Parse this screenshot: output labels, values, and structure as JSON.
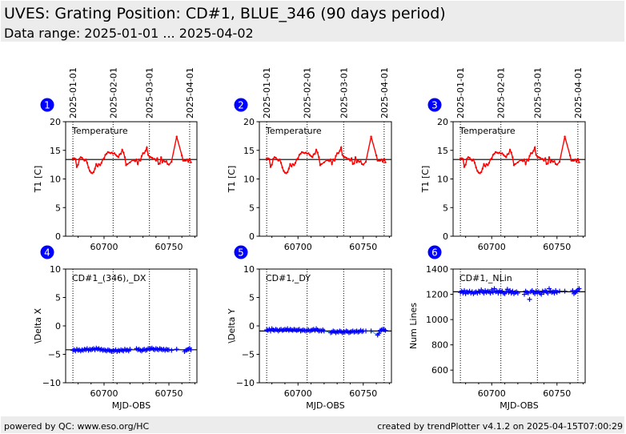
{
  "header": {
    "title": "UVES: Grating Position: CD#1, BLUE_346 (90 days period)",
    "subtitle": "Data range: 2025-01-01 ... 2025-04-02"
  },
  "footer": {
    "left": "powered by QC: www.eso.org/HC",
    "right": "created by trendPlotter v4.1.2 on 2025-04-15T07:00:29"
  },
  "colors": {
    "badge": "#0000ff",
    "temperature": "#ff0000",
    "points": "#0000ff",
    "fit_line": "#3399cc",
    "reference": "#000000",
    "header_bg": "#ececec"
  },
  "chart_data": [
    {
      "id": 1,
      "type": "line",
      "badge": "1",
      "label": "Temperature",
      "ylabel": "T1 [C]",
      "xlabel": "",
      "xlim": [
        60670.4,
        60771.6
      ],
      "ylim": [
        0,
        20
      ],
      "yticks": [
        0,
        5,
        10,
        15,
        20
      ],
      "xticks": [
        60700,
        60750
      ],
      "date_markers": [
        {
          "mjd": 60676,
          "label": "2025-01-01"
        },
        {
          "mjd": 60707,
          "label": "2025-02-01"
        },
        {
          "mjd": 60735,
          "label": "2025-03-01"
        },
        {
          "mjd": 60766,
          "label": "2025-04-01"
        }
      ],
      "reference": 13.4,
      "series": "temperature"
    },
    {
      "id": 2,
      "type": "line",
      "badge": "2",
      "label": "Temperature",
      "ylabel": "T1 [C]",
      "xlabel": "",
      "xlim": [
        60670.4,
        60771.6
      ],
      "ylim": [
        0,
        20
      ],
      "yticks": [
        0,
        5,
        10,
        15,
        20
      ],
      "xticks": [
        60700,
        60750
      ],
      "date_markers": [
        {
          "mjd": 60676,
          "label": "2025-01-01"
        },
        {
          "mjd": 60707,
          "label": "2025-02-01"
        },
        {
          "mjd": 60735,
          "label": "2025-03-01"
        },
        {
          "mjd": 60766,
          "label": "2025-04-01"
        }
      ],
      "reference": 13.4,
      "series": "temperature"
    },
    {
      "id": 3,
      "type": "line",
      "badge": "3",
      "label": "Temperature",
      "ylabel": "T1 [C]",
      "xlabel": "",
      "xlim": [
        60670.4,
        60771.6
      ],
      "ylim": [
        0,
        20
      ],
      "yticks": [
        0,
        5,
        10,
        15,
        20
      ],
      "xticks": [
        60700,
        60750
      ],
      "date_markers": [
        {
          "mjd": 60676,
          "label": "2025-01-01"
        },
        {
          "mjd": 60707,
          "label": "2025-02-01"
        },
        {
          "mjd": 60735,
          "label": "2025-03-01"
        },
        {
          "mjd": 60766,
          "label": "2025-04-01"
        }
      ],
      "reference": 13.4,
      "series": "temperature"
    },
    {
      "id": 4,
      "type": "scatter",
      "badge": "4",
      "label": "CD#1_(346),_DX",
      "ylabel": "\\Delta X",
      "xlabel": "MJD-OBS",
      "xlim": [
        60670.4,
        60771.6
      ],
      "ylim": [
        -10,
        10
      ],
      "yticks": [
        -10,
        -5,
        0,
        5,
        10
      ],
      "xticks": [
        60700,
        60750
      ],
      "date_markers": [
        {
          "mjd": 60676
        },
        {
          "mjd": 60707
        },
        {
          "mjd": 60735
        },
        {
          "mjd": 60766
        }
      ],
      "reference": -4.2,
      "series": "dx"
    },
    {
      "id": 5,
      "type": "scatter",
      "badge": "5",
      "label": "CD#1,_DY",
      "ylabel": "\\Delta Y",
      "xlabel": "MJD-OBS",
      "xlim": [
        60670.4,
        60771.6
      ],
      "ylim": [
        -10,
        10
      ],
      "yticks": [
        -10,
        -5,
        0,
        5,
        10
      ],
      "xticks": [
        60700,
        60750
      ],
      "date_markers": [
        {
          "mjd": 60676
        },
        {
          "mjd": 60707
        },
        {
          "mjd": 60735
        },
        {
          "mjd": 60766
        }
      ],
      "reference": -0.9,
      "series": "dy"
    },
    {
      "id": 6,
      "type": "scatter",
      "badge": "6",
      "label": "CD#1,_NLin",
      "ylabel": "Num Lines",
      "xlabel": "MJD-OBS",
      "xlim": [
        60670.4,
        60771.6
      ],
      "ylim": [
        500,
        1400
      ],
      "yticks": [
        600,
        800,
        1000,
        1200,
        1400
      ],
      "xticks": [
        60700,
        60750
      ],
      "date_markers": [
        {
          "mjd": 60676
        },
        {
          "mjd": 60707
        },
        {
          "mjd": 60735
        },
        {
          "mjd": 60766
        }
      ],
      "reference": 1220,
      "series": "nlin"
    }
  ],
  "series_data": {
    "temperature": {
      "x": [
        60676,
        60677,
        60678,
        60679,
        60680,
        60681,
        60682,
        60683,
        60684,
        60685,
        60686,
        60687,
        60688,
        60689,
        60690,
        60691,
        60692,
        60693,
        60694,
        60695,
        60696,
        60697,
        60698,
        60699,
        60700,
        60701,
        60702,
        60703,
        60704,
        60705,
        60706,
        60707,
        60708,
        60709,
        60710,
        60711,
        60712,
        60713,
        60714,
        60715,
        60716,
        60717,
        60718,
        60720,
        60722,
        60724,
        60725,
        60726,
        60727,
        60728,
        60729,
        60730,
        60731,
        60732,
        60733,
        60734,
        60735,
        60736,
        60737,
        60738,
        60739,
        60740,
        60741,
        60742,
        60743,
        60744,
        60745,
        60746,
        60747,
        60748,
        60749,
        60750,
        60752,
        60756,
        60760,
        60761,
        60762,
        60763,
        60764,
        60765,
        60766,
        60767
      ],
      "y": [
        13.6,
        13.6,
        13.5,
        12.1,
        12.5,
        13.5,
        13.8,
        13.7,
        13.4,
        13.2,
        13.4,
        12.8,
        12.0,
        11.4,
        11.1,
        11.0,
        11.2,
        11.8,
        12.6,
        12.2,
        12.6,
        12.4,
        12.8,
        13.4,
        13.6,
        14.2,
        14.4,
        14.7,
        14.6,
        14.5,
        14.6,
        14.4,
        14.5,
        14.2,
        14.0,
        13.8,
        14.3,
        14.4,
        15.1,
        14.6,
        13.8,
        12.4,
        12.6,
        12.9,
        13.3,
        13.1,
        13.4,
        12.6,
        13.4,
        13.2,
        14.0,
        14.5,
        14.5,
        14.9,
        15.5,
        14.2,
        13.9,
        13.8,
        13.7,
        13.5,
        13.5,
        13.2,
        13.6,
        12.6,
        12.7,
        13.8,
        12.9,
        13.2,
        13.0,
        13.1,
        12.6,
        12.5,
        13.0,
        17.4,
        14.1,
        13.2,
        13.2,
        13.2,
        13.4,
        13.0,
        13.5,
        12.9
      ]
    },
    "dx": {
      "x": [
        60676,
        60677,
        60678,
        60679,
        60680,
        60681,
        60682,
        60683,
        60684,
        60685,
        60686,
        60687,
        60688,
        60689,
        60690,
        60691,
        60692,
        60693,
        60694,
        60695,
        60696,
        60697,
        60698,
        60699,
        60700,
        60701,
        60702,
        60703,
        60704,
        60705,
        60706,
        60707,
        60708,
        60709,
        60710,
        60711,
        60712,
        60713,
        60714,
        60715,
        60716,
        60717,
        60718,
        60719,
        60720,
        60725,
        60726,
        60727,
        60728,
        60729,
        60730,
        60731,
        60732,
        60733,
        60734,
        60735,
        60736,
        60737,
        60738,
        60739,
        60740,
        60741,
        60742,
        60743,
        60744,
        60745,
        60746,
        60747,
        60748,
        60749,
        60750,
        60752,
        60756,
        60762,
        60763,
        60764,
        60765,
        60766,
        60767
      ],
      "y": [
        -4.3,
        -4.2,
        -4.4,
        -4.1,
        -4.3,
        -4.2,
        -4.4,
        -4.2,
        -4.3,
        -4.1,
        -4.2,
        -4.0,
        -4.3,
        -4.1,
        -4.2,
        -4.1,
        -4.0,
        -4.2,
        -3.9,
        -4.1,
        -4.0,
        -4.2,
        -4.1,
        -4.3,
        -4.2,
        -4.3,
        -4.4,
        -4.2,
        -4.3,
        -4.4,
        -4.5,
        -4.3,
        -4.4,
        -4.2,
        -4.5,
        -4.3,
        -4.4,
        -4.2,
        -4.3,
        -4.4,
        -4.1,
        -4.3,
        -4.2,
        -4.4,
        -4.1,
        -4.0,
        -4.2,
        -4.1,
        -4.3,
        -4.4,
        -4.2,
        -4.1,
        -4.3,
        -4.2,
        -4.0,
        -4.1,
        -4.0,
        -3.9,
        -4.1,
        -4.2,
        -4.0,
        -4.1,
        -4.2,
        -4.0,
        -4.1,
        -4.2,
        -4.1,
        -4.3,
        -4.1,
        -4.2,
        -4.2,
        -4.3,
        -4.1,
        -4.5,
        -4.3,
        -4.2,
        -4.1,
        -3.9,
        -4.2
      ]
    },
    "dy": {
      "x": [
        60676,
        60677,
        60678,
        60679,
        60680,
        60681,
        60682,
        60683,
        60684,
        60685,
        60686,
        60687,
        60688,
        60689,
        60690,
        60691,
        60692,
        60693,
        60694,
        60695,
        60696,
        60697,
        60698,
        60699,
        60700,
        60701,
        60702,
        60703,
        60704,
        60705,
        60706,
        60707,
        60708,
        60709,
        60710,
        60711,
        60712,
        60713,
        60714,
        60715,
        60716,
        60717,
        60718,
        60719,
        60720,
        60725,
        60726,
        60727,
        60728,
        60729,
        60730,
        60731,
        60732,
        60733,
        60734,
        60735,
        60736,
        60737,
        60738,
        60739,
        60740,
        60741,
        60742,
        60743,
        60744,
        60745,
        60746,
        60747,
        60748,
        60749,
        60750,
        60752,
        60756,
        60761,
        60762,
        60763,
        60764,
        60765,
        60766,
        60767
      ],
      "y": [
        -0.7,
        -0.8,
        -0.6,
        -0.9,
        -0.5,
        -0.7,
        -0.8,
        -0.6,
        -0.7,
        -0.9,
        -0.7,
        -0.6,
        -0.8,
        -0.7,
        -0.6,
        -0.7,
        -0.5,
        -0.8,
        -0.6,
        -0.7,
        -0.8,
        -0.6,
        -0.7,
        -0.8,
        -0.7,
        -0.6,
        -0.9,
        -0.8,
        -0.7,
        -0.8,
        -0.9,
        -0.8,
        -0.7,
        -0.9,
        -0.8,
        -0.7,
        -0.6,
        -0.8,
        -0.5,
        -0.7,
        -0.9,
        -0.8,
        -0.9,
        -0.7,
        -0.9,
        -1.2,
        -1.1,
        -0.9,
        -1.0,
        -1.2,
        -1.0,
        -1.1,
        -0.9,
        -1.0,
        -1.2,
        -1.0,
        -1.1,
        -0.9,
        -1.0,
        -1.2,
        -1.1,
        -1.0,
        -0.9,
        -1.1,
        -1.0,
        -0.9,
        -1.1,
        -1.0,
        -0.8,
        -1.0,
        -0.9,
        -0.9,
        -0.9,
        -1.6,
        -1.3,
        -0.8,
        -0.7,
        -0.6,
        -0.7,
        -0.8
      ]
    },
    "nlin": {
      "x": [
        60676,
        60677,
        60678,
        60679,
        60680,
        60681,
        60682,
        60683,
        60684,
        60685,
        60686,
        60687,
        60688,
        60689,
        60690,
        60691,
        60692,
        60693,
        60694,
        60695,
        60696,
        60697,
        60698,
        60699,
        60700,
        60701,
        60702,
        60703,
        60704,
        60705,
        60706,
        60707,
        60708,
        60709,
        60710,
        60711,
        60712,
        60713,
        60714,
        60715,
        60716,
        60717,
        60718,
        60719,
        60720,
        60725,
        60726,
        60727,
        60728,
        60729,
        60730,
        60731,
        60732,
        60733,
        60734,
        60735,
        60736,
        60737,
        60738,
        60739,
        60740,
        60741,
        60742,
        60743,
        60744,
        60745,
        60746,
        60747,
        60748,
        60749,
        60750,
        60752,
        60756,
        60762,
        60763,
        60764,
        60765,
        60766,
        60767
      ],
      "y": [
        1215,
        1225,
        1210,
        1230,
        1205,
        1220,
        1215,
        1225,
        1210,
        1220,
        1205,
        1215,
        1220,
        1210,
        1225,
        1215,
        1235,
        1220,
        1210,
        1230,
        1215,
        1225,
        1220,
        1210,
        1235,
        1215,
        1245,
        1220,
        1225,
        1210,
        1230,
        1215,
        1225,
        1210,
        1205,
        1220,
        1240,
        1215,
        1230,
        1210,
        1225,
        1205,
        1215,
        1220,
        1210,
        1200,
        1225,
        1215,
        1210,
        1160,
        1220,
        1230,
        1215,
        1205,
        1225,
        1215,
        1220,
        1210,
        1200,
        1225,
        1215,
        1230,
        1220,
        1210,
        1245,
        1225,
        1215,
        1220,
        1210,
        1230,
        1215,
        1225,
        1225,
        1230,
        1205,
        1215,
        1225,
        1235,
        1245
      ]
    }
  }
}
